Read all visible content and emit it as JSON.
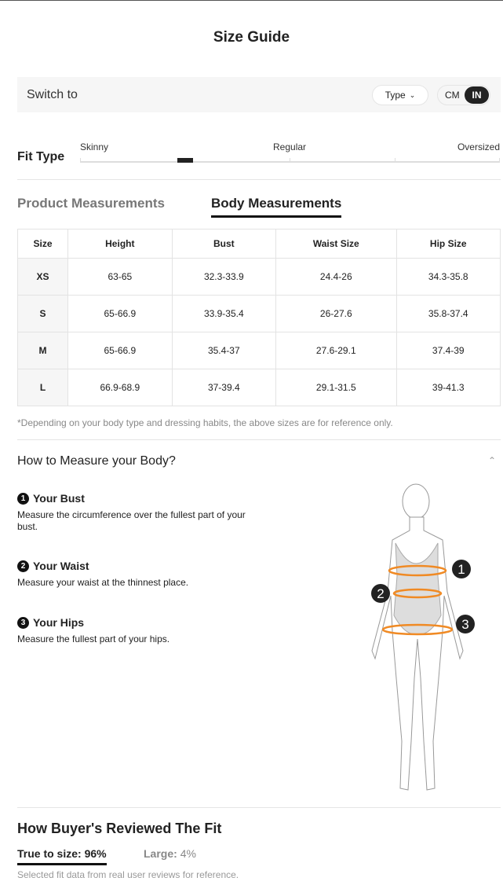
{
  "title": "Size Guide",
  "switch": {
    "label": "Switch to",
    "type_label": "Type",
    "units": [
      "CM",
      "IN"
    ],
    "selected_unit": "IN"
  },
  "fit": {
    "label": "Fit Type",
    "scale": [
      "Skinny",
      "Regular",
      "Oversized"
    ],
    "position_percent": 25
  },
  "tabs": [
    {
      "label": "Product Measurements",
      "active": false
    },
    {
      "label": "Body Measurements",
      "active": true
    }
  ],
  "table": {
    "headers": [
      "Size",
      "Height",
      "Bust",
      "Waist Size",
      "Hip Size"
    ],
    "rows": [
      [
        "XS",
        "63-65",
        "32.3-33.9",
        "24.4-26",
        "34.3-35.8"
      ],
      [
        "S",
        "65-66.9",
        "33.9-35.4",
        "26-27.6",
        "35.8-37.4"
      ],
      [
        "M",
        "65-66.9",
        "35.4-37",
        "27.6-29.1",
        "37.4-39"
      ],
      [
        "L",
        "66.9-68.9",
        "37-39.4",
        "29.1-31.5",
        "39-41.3"
      ]
    ]
  },
  "note": "*Depending on your body type and dressing habits, the above sizes are for reference only.",
  "howto": {
    "title": "How to Measure your Body?",
    "items": [
      {
        "num": "1",
        "title": "Your Bust",
        "desc": "Measure the circumference over the fullest part of your bust."
      },
      {
        "num": "2",
        "title": "Your Waist",
        "desc": "Measure your waist at the thinnest place."
      },
      {
        "num": "3",
        "title": "Your Hips",
        "desc": "Measure the fullest part of your hips."
      }
    ]
  },
  "review": {
    "title": "How Buyer's Reviewed The Fit",
    "true_label": "True to size:",
    "true_value": "96%",
    "large_label": "Large:",
    "large_value": "4%",
    "note": "Selected fit data from real user reviews for reference."
  },
  "colors": {
    "accent": "#222222",
    "measure_line": "#f08a24"
  }
}
